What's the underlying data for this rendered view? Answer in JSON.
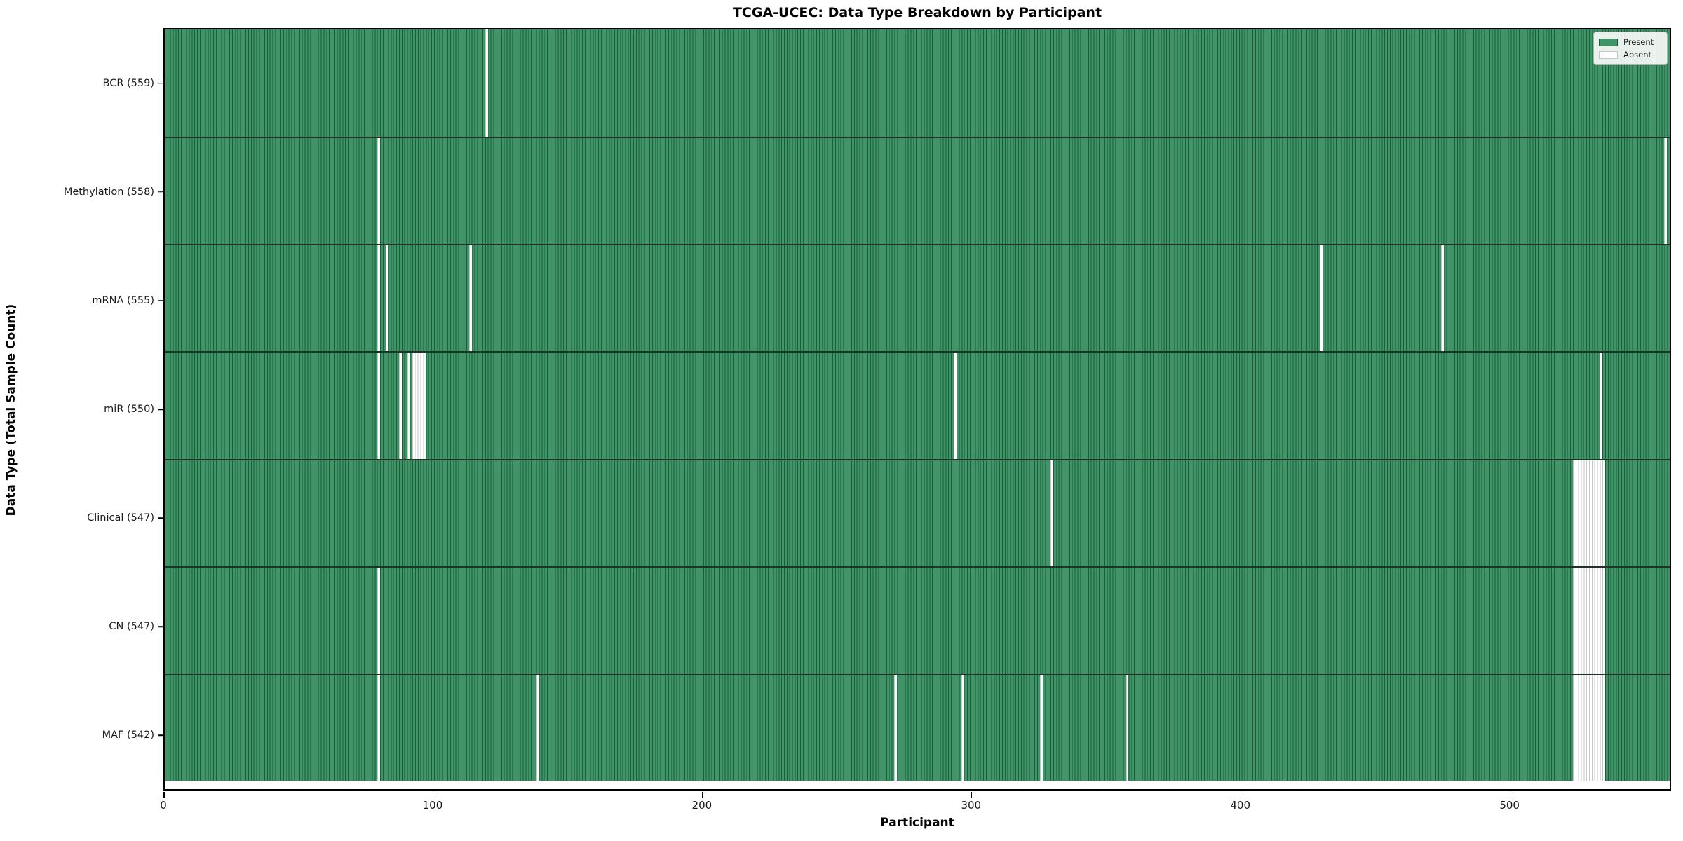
{
  "title": "TCGA-UCEC: Data Type Breakdown by Participant",
  "xlabel": "Participant",
  "ylabel": "Data Type (Total Sample Count)",
  "legend": {
    "items": [
      {
        "label": "Present",
        "color": "#3f9468",
        "edge": "#1e5c3a"
      },
      {
        "label": "Absent",
        "color": "#ffffff",
        "edge": "#c6c6c6"
      }
    ]
  },
  "colors": {
    "present_fill": "#3f9468",
    "present_edge": "#1e5c3a",
    "absent_fill": "#ffffff",
    "absent_edge": "#c6c6c6",
    "row_divider": "#1d3326",
    "plot_border": "#000000"
  },
  "chart_data": {
    "type": "heatmap",
    "title": "TCGA-UCEC: Data Type Breakdown by Participant",
    "xlabel": "Participant",
    "ylabel": "Data Type (Total Sample Count)",
    "legend_entries": [
      "Present",
      "Absent"
    ],
    "legend_position": "upper right",
    "grid": false,
    "n_participants": 560,
    "xlim": [
      0,
      560
    ],
    "x_ticks": [
      0,
      100,
      200,
      300,
      400,
      500
    ],
    "x_tick_labels": [
      "0",
      "100",
      "200",
      "300",
      "400",
      "500"
    ],
    "rows": [
      {
        "label": "BCR (559)",
        "data_type": "BCR",
        "total_samples": 559,
        "absent_participants": [
          119
        ]
      },
      {
        "label": "Methylation (558)",
        "data_type": "Methylation",
        "total_samples": 558,
        "absent_participants": [
          79,
          557
        ]
      },
      {
        "label": "mRNA (555)",
        "data_type": "mRNA",
        "total_samples": 555,
        "absent_participants": [
          79,
          82,
          113,
          429,
          474
        ]
      },
      {
        "label": "miR (550)",
        "data_type": "miR",
        "total_samples": 550,
        "absent_participants": [
          79,
          87,
          90,
          92,
          93,
          94,
          95,
          96,
          293,
          533
        ]
      },
      {
        "label": "Clinical (547)",
        "data_type": "Clinical",
        "total_samples": 547,
        "absent_participants": [
          329,
          523,
          524,
          525,
          526,
          527,
          528,
          529,
          530,
          531,
          532,
          533,
          534
        ]
      },
      {
        "label": "CN (547)",
        "data_type": "CN",
        "total_samples": 547,
        "absent_participants": [
          79,
          523,
          524,
          525,
          526,
          527,
          528,
          529,
          530,
          531,
          532,
          533,
          534
        ]
      },
      {
        "label": "MAF (542)",
        "data_type": "MAF",
        "total_samples": 542,
        "absent_participants": [
          79,
          138,
          271,
          296,
          325,
          357,
          523,
          524,
          525,
          526,
          527,
          528,
          529,
          530,
          531,
          532,
          533,
          534
        ]
      }
    ]
  }
}
